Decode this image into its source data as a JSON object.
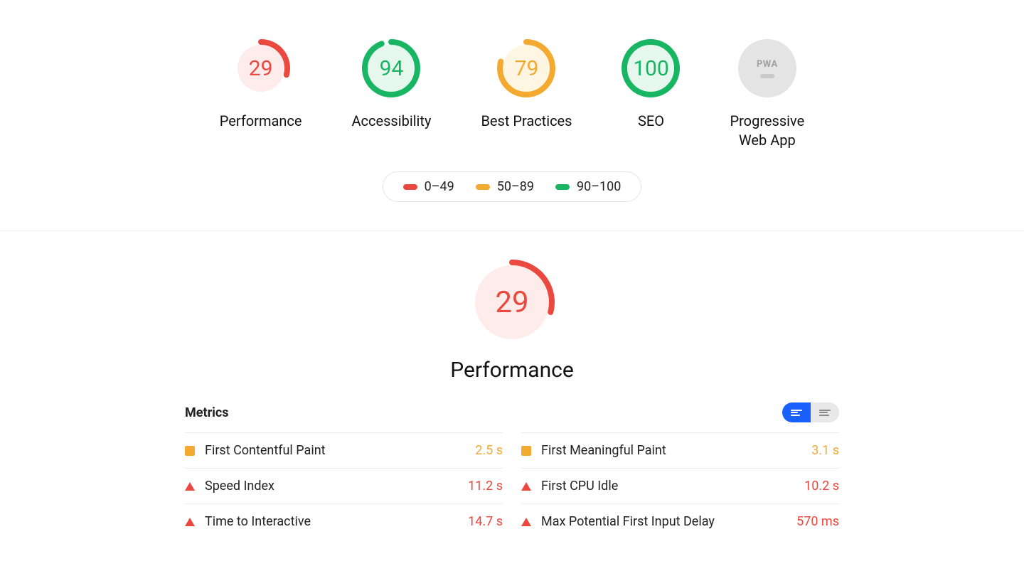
{
  "colors": {
    "fail": "#eb483f",
    "average": "#f4a931",
    "pass": "#18b663",
    "neutral": "#c8c8c8",
    "fail_bg": "#fdecea",
    "average_bg": "#fef5e3",
    "pass_bg": "#e6f7ee",
    "toggle_active": "#1a5fff"
  },
  "gaugeStyle": {
    "smallDiameter": 82,
    "bigDiameter": 120,
    "strokeWidth": 8,
    "smallFontSize": 30,
    "bigFontSize": 42
  },
  "categories": [
    {
      "id": "performance",
      "label": "Performance",
      "score": 29,
      "status": "fail"
    },
    {
      "id": "accessibility",
      "label": "Accessibility",
      "score": 94,
      "status": "pass"
    },
    {
      "id": "best-practices",
      "label": "Best Practices",
      "score": 79,
      "status": "average"
    },
    {
      "id": "seo",
      "label": "SEO",
      "score": 100,
      "status": "pass"
    },
    {
      "id": "pwa",
      "label": "Progressive\nWeb App",
      "score": null,
      "status": "neutral",
      "pwa": true
    }
  ],
  "legend": [
    {
      "range": "0–49",
      "colorKey": "fail"
    },
    {
      "range": "50–89",
      "colorKey": "average"
    },
    {
      "range": "90–100",
      "colorKey": "pass"
    }
  ],
  "detail": {
    "title": "Performance",
    "score": 29,
    "status": "fail",
    "metricsHeading": "Metrics",
    "metrics": [
      {
        "name": "First Contentful Paint",
        "value": "2.5 s",
        "status": "average",
        "shape": "square"
      },
      {
        "name": "First Meaningful Paint",
        "value": "3.1 s",
        "status": "average",
        "shape": "square"
      },
      {
        "name": "Speed Index",
        "value": "11.2 s",
        "status": "fail",
        "shape": "triangle"
      },
      {
        "name": "First CPU Idle",
        "value": "10.2 s",
        "status": "fail",
        "shape": "triangle"
      },
      {
        "name": "Time to Interactive",
        "value": "14.7 s",
        "status": "fail",
        "shape": "triangle"
      },
      {
        "name": "Max Potential First Input Delay",
        "value": "570 ms",
        "status": "fail",
        "shape": "triangle"
      }
    ]
  }
}
